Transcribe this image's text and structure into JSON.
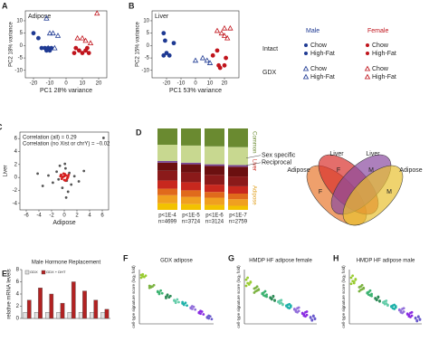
{
  "legend": {
    "headers": [
      "Male",
      "Female"
    ],
    "colors": [
      "#1f3a93",
      "#c0141c"
    ],
    "groups": [
      {
        "name": "Intact",
        "entries": [
          "Chow",
          "High-Fat"
        ]
      },
      {
        "name": "GDX",
        "entries": [
          "Chow",
          "High-Fat"
        ]
      }
    ]
  },
  "chart_data": [
    {
      "type": "scatter",
      "label": "A",
      "title": "Adipose",
      "xlabel": "PC1 28% variance",
      "ylabel": "PC2 18% variance",
      "xlim": [
        -25,
        25
      ],
      "ylim": [
        -13,
        14
      ],
      "xticks": [
        -20,
        -10,
        0,
        10,
        20
      ],
      "yticks": [
        -10,
        -5,
        0,
        5,
        10
      ],
      "series": [
        {
          "color": "#1f3a93",
          "marker": "circle",
          "filled": true,
          "x": [
            -20,
            -17,
            -15,
            -13,
            -12,
            -11,
            -10,
            -9
          ],
          "values": [
            5,
            3,
            -1,
            -1,
            -2,
            -1,
            -2,
            -1
          ]
        },
        {
          "color": "#1f3a93",
          "marker": "triangle",
          "filled": false,
          "x": [
            -12,
            -10,
            -8,
            -7,
            -5,
            -11
          ],
          "values": [
            11,
            5,
            5,
            -1,
            4,
            -1
          ]
        },
        {
          "color": "#c0141c",
          "marker": "circle",
          "filled": true,
          "x": [
            5,
            6,
            8,
            10,
            12,
            13,
            14
          ],
          "values": [
            -3,
            -1,
            -2,
            -3,
            -2,
            -1,
            -3
          ]
        },
        {
          "color": "#c0141c",
          "marker": "triangle",
          "filled": false,
          "x": [
            7,
            10,
            12,
            15,
            19
          ],
          "values": [
            3,
            3,
            2,
            1,
            13
          ]
        }
      ]
    },
    {
      "type": "scatter",
      "label": "B",
      "title": "Liver",
      "xlabel": "PC1 53% variance",
      "ylabel": "PC2 15% variance",
      "xlim": [
        -30,
        30
      ],
      "ylim": [
        -13,
        14
      ],
      "xticks": [
        -20,
        -10,
        0,
        10,
        20
      ],
      "yticks": [
        -10,
        -5,
        0,
        5,
        10
      ],
      "series": [
        {
          "color": "#1f3a93",
          "marker": "circle",
          "filled": true,
          "x": [
            -22,
            -21,
            -20,
            -18,
            -22,
            -15
          ],
          "values": [
            5,
            2,
            -3,
            -4,
            -4,
            1
          ]
        },
        {
          "color": "#1f3a93",
          "marker": "triangle",
          "filled": false,
          "x": [
            5,
            8,
            10,
            0
          ],
          "values": [
            -5,
            -6,
            -7,
            -6
          ]
        },
        {
          "color": "#c0141c",
          "marker": "circle",
          "filled": true,
          "x": [
            12,
            15,
            16,
            17,
            20,
            21
          ],
          "values": [
            -4,
            -2,
            -8,
            -9,
            -8,
            -5
          ]
        },
        {
          "color": "#c0141c",
          "marker": "triangle",
          "filled": false,
          "x": [
            15,
            18,
            20,
            22,
            24,
            20
          ],
          "values": [
            6,
            5,
            4,
            3,
            7,
            7
          ]
        }
      ]
    },
    {
      "type": "scatter",
      "label": "C",
      "xlabel": "Adipose",
      "ylabel": "Liver",
      "xlim": [
        -7,
        7
      ],
      "ylim": [
        -5,
        7
      ],
      "xticks": [
        -6,
        -4,
        -2,
        0,
        2,
        4,
        6
      ],
      "yticks": [
        -4,
        -2,
        0,
        2,
        4,
        6
      ],
      "annotations": [
        "Correlation (all) = 0.29",
        "Correlation (no Xist or chrY) = −0.02"
      ],
      "series": [
        {
          "color": "#555555",
          "marker": "circle",
          "filled": true,
          "x": [
            -0.5,
            0.4,
            -1.2,
            1.1,
            0.2,
            -0.3,
            0.8,
            -0.9,
            1.6,
            -1.8,
            0.1,
            2.3,
            -2.5,
            0.6,
            -0.7,
            3.1,
            -3.4,
            0.3,
            6.2,
            -4.2
          ],
          "values": [
            0.4,
            -0.5,
            0.9,
            -1.1,
            1.4,
            -1.6,
            0.7,
            -0.3,
            0.2,
            -0.8,
            2.1,
            -0.6,
            0.3,
            -2.2,
            1.8,
            1.0,
            -1.3,
            -3.1,
            6.1,
            0.6
          ]
        },
        {
          "color": "#d62020",
          "marker": "circle",
          "filled": true,
          "x": [
            -0.2,
            0.3,
            -0.4,
            0.5,
            0.1,
            -0.6,
            0.7,
            0.0,
            -0.1,
            0.4,
            -0.3,
            0.2,
            0.6,
            -0.5,
            0.0
          ],
          "values": [
            0.1,
            0.3,
            -0.2,
            -0.1,
            0.5,
            0.2,
            0.4,
            -0.4,
            0.6,
            -0.3,
            0.0,
            -0.5,
            0.1,
            0.4,
            0.2
          ]
        }
      ]
    },
    {
      "type": "bar",
      "stacked": true,
      "label": "D",
      "pvalues": [
        "p<1E-4",
        "p<1E-5",
        "p<1E-6",
        "p<1E-7"
      ],
      "n": [
        "n=4699",
        "n=3724",
        "n=3124",
        "n=2759"
      ],
      "side_labels": [
        "Common",
        "Liver",
        "Adipose"
      ],
      "annotations": [
        "Sex specific",
        "Reciprocal"
      ],
      "series": [
        {
          "color": "#f2c200",
          "values": [
            8,
            7,
            6,
            5
          ]
        },
        {
          "color": "#f0a020",
          "values": [
            10,
            9,
            9,
            8
          ]
        },
        {
          "color": "#e06a1c",
          "values": [
            8,
            8,
            7,
            7
          ]
        },
        {
          "color": "#c8281e",
          "values": [
            10,
            10,
            9,
            9
          ]
        },
        {
          "color": "#8b1a1a",
          "values": [
            12,
            12,
            12,
            12
          ]
        },
        {
          "color": "#6b1010",
          "values": [
            10,
            10,
            11,
            12
          ]
        },
        {
          "color": "#7a4a9a",
          "values": [
            2,
            2,
            2,
            2
          ]
        },
        {
          "color": "#c8d890",
          "values": [
            20,
            21,
            22,
            22
          ]
        },
        {
          "color": "#6a8a30",
          "values": [
            20,
            21,
            22,
            23
          ]
        }
      ]
    },
    {
      "type": "venn",
      "sets": [
        {
          "label": "Adipose",
          "sub": "F",
          "color": "#e8772e"
        },
        {
          "label": "Liver",
          "sub": "F",
          "color": "#d9302c"
        },
        {
          "label": "Liver",
          "sub": "M",
          "color": "#8a4aa0"
        },
        {
          "label": "Adipose",
          "sub": "M",
          "color": "#e8c030"
        }
      ]
    },
    {
      "type": "bar",
      "label": "E",
      "title": "Male Hormone Replacement",
      "ylabel": "relative mRNA levels",
      "categories": [
        null,
        null,
        null,
        null,
        null,
        null,
        null,
        null
      ],
      "ylim": [
        0,
        8
      ],
      "yticks": [
        0,
        2,
        4,
        6,
        8
      ],
      "series": [
        {
          "name": "GDX",
          "color": "#e0e0e0",
          "values": [
            1,
            1,
            1,
            1,
            1,
            1,
            1,
            1
          ]
        },
        {
          "name": "GDX + DHT",
          "color": "#b22222",
          "values": [
            3,
            5,
            4,
            2.5,
            6,
            4.5,
            3,
            1.5
          ]
        }
      ]
    },
    {
      "type": "strip",
      "label": "F",
      "title": "GDX adipose",
      "ylabel": "cell-type signature score (log₂ fold)",
      "categories": [
        null,
        null,
        null,
        null,
        null,
        null,
        null,
        null,
        null
      ],
      "ylim": [
        -3,
        5
      ],
      "colors": [
        "#9acd32",
        "#7cb342",
        "#3cb371",
        "#2e8b57",
        "#66cdaa",
        "#20b2aa",
        "#9370db",
        "#8a2be2",
        "#6a5acd"
      ],
      "values": [
        [
          4.2,
          4.0,
          3.9,
          4.1,
          3.8,
          4.3
        ],
        [
          2.6,
          2.4,
          2.5,
          2.7,
          2.3,
          2.5
        ],
        [
          1.8,
          1.6,
          1.9,
          1.5,
          1.7,
          1.4
        ],
        [
          1.0,
          1.2,
          0.9,
          1.1,
          0.8,
          1.3
        ],
        [
          0.5,
          0.3,
          0.6,
          0.2,
          0.4,
          0.1
        ],
        [
          0.0,
          -0.2,
          0.1,
          -0.3,
          0.2,
          -0.1
        ],
        [
          -0.6,
          -0.8,
          -0.5,
          -0.9,
          -0.7,
          -0.4
        ],
        [
          -1.3,
          -1.5,
          -1.2,
          -1.6,
          -1.4,
          -1.1
        ],
        [
          -2.0,
          -2.2,
          -1.9,
          -2.3,
          -2.1,
          -1.8
        ]
      ]
    },
    {
      "type": "strip",
      "label": "G",
      "title": "HMDP HF adipose female",
      "ylabel": "cell-type signature score (log₂ fold)",
      "categories": [
        null,
        null,
        null,
        null,
        null,
        null,
        null,
        null,
        null
      ],
      "ylim": [
        -3,
        5
      ],
      "colors": [
        "#9acd32",
        "#7cb342",
        "#3cb371",
        "#2e8b57",
        "#66cdaa",
        "#20b2aa",
        "#9370db",
        "#8a2be2",
        "#6a5acd"
      ],
      "values": [
        [
          3.5,
          3.0,
          2.8,
          3.2,
          2.6,
          3.8,
          2.9,
          3.1
        ],
        [
          2.2,
          1.8,
          2.5,
          2.0,
          1.6,
          2.3,
          1.9,
          2.1
        ],
        [
          1.5,
          1.2,
          1.8,
          1.0,
          1.4,
          1.6,
          1.1,
          1.3
        ],
        [
          0.9,
          0.6,
          1.1,
          0.5,
          0.8,
          0.7,
          1.0,
          0.4
        ],
        [
          0.3,
          0.0,
          0.5,
          -0.1,
          0.2,
          0.4,
          0.1,
          -0.2
        ],
        [
          -0.3,
          -0.6,
          -0.1,
          -0.5,
          -0.4,
          -0.2,
          -0.7,
          -0.3
        ],
        [
          -0.9,
          -1.2,
          -0.7,
          -1.1,
          -0.8,
          -1.0,
          -1.3,
          -0.6
        ],
        [
          -1.5,
          -1.8,
          -1.3,
          -1.7,
          -1.4,
          -1.6,
          -1.9,
          -1.2
        ],
        [
          -2.0,
          -2.4,
          -1.8,
          -2.2,
          -2.1,
          -2.5,
          -1.9,
          -2.3
        ]
      ]
    },
    {
      "type": "strip",
      "label": "H",
      "title": "HMDP HF adipose male",
      "ylabel": "cell-type signature score (log₂ fold)",
      "categories": [
        null,
        null,
        null,
        null,
        null,
        null,
        null,
        null,
        null
      ],
      "ylim": [
        -3,
        5
      ],
      "colors": [
        "#9acd32",
        "#7cb342",
        "#3cb371",
        "#2e8b57",
        "#66cdaa",
        "#20b2aa",
        "#9370db",
        "#8a2be2",
        "#6a5acd"
      ],
      "values": [
        [
          3.8,
          3.3,
          3.0,
          3.5,
          2.9,
          4.1,
          3.2,
          3.6
        ],
        [
          2.4,
          2.0,
          2.7,
          2.2,
          1.8,
          2.5,
          2.1,
          2.3
        ],
        [
          1.6,
          1.3,
          1.9,
          1.1,
          1.5,
          1.7,
          1.2,
          1.4
        ],
        [
          0.8,
          0.5,
          1.0,
          0.4,
          0.7,
          0.6,
          0.9,
          0.3
        ],
        [
          0.2,
          -0.1,
          0.4,
          -0.2,
          0.1,
          0.3,
          0.0,
          -0.3
        ],
        [
          -0.4,
          -0.7,
          -0.2,
          -0.6,
          -0.5,
          -0.3,
          -0.8,
          -0.4
        ],
        [
          -1.0,
          -1.3,
          -0.8,
          -1.2,
          -0.9,
          -1.1,
          -1.4,
          -0.7
        ],
        [
          -1.6,
          -1.9,
          -1.4,
          -1.8,
          -1.5,
          -1.7,
          -2.0,
          -1.3
        ],
        [
          -2.1,
          -2.5,
          -1.9,
          -2.3,
          -2.2,
          -2.6,
          -2.0,
          -2.4
        ]
      ]
    }
  ]
}
